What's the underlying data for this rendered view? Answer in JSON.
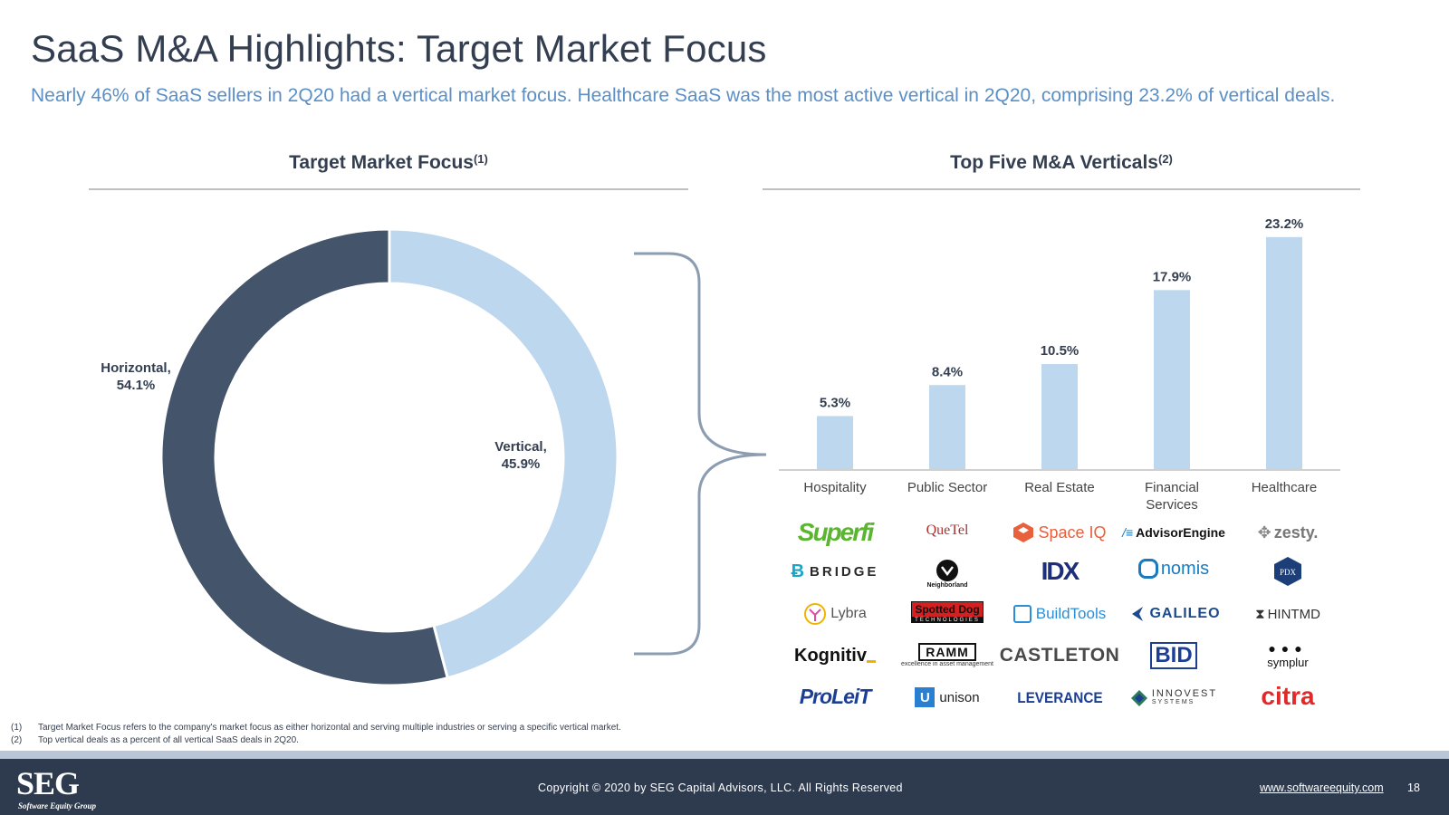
{
  "page": {
    "title": "SaaS M&A Highlights: Target Market Focus",
    "subtitle": "Nearly 46% of SaaS sellers in 2Q20 had a vertical market focus. Healthcare SaaS was the most active vertical in 2Q20, comprising 23.2% of vertical deals."
  },
  "chart_data": [
    {
      "type": "pie",
      "variant": "donut",
      "title": "Target Market Focus",
      "title_note": "(1)",
      "slices": [
        {
          "label": "Vertical,",
          "value": 45.9,
          "value_label": "45.9%",
          "color": "#bdd7ee"
        },
        {
          "label": "Horizontal,",
          "value": 54.1,
          "value_label": "54.1%",
          "color": "#44546a"
        }
      ]
    },
    {
      "type": "bar",
      "title": "Top Five M&A Verticals",
      "title_note": "(2)",
      "categories": [
        "Hospitality",
        "Public Sector",
        "Real Estate",
        "Financial Services",
        "Healthcare"
      ],
      "values": [
        5.3,
        8.4,
        10.5,
        17.9,
        23.2
      ],
      "value_labels": [
        "5.3%",
        "8.4%",
        "10.5%",
        "17.9%",
        "23.2%"
      ],
      "ylim": [
        0,
        24
      ],
      "bar_color": "#bdd7ee",
      "grid": false
    }
  ],
  "logos": [
    [
      "Superfi",
      "BRIDGE",
      "Lybra",
      "Kognitiv",
      "ProLeiT"
    ],
    [
      "QueTel",
      "Neighborland",
      "Spotted Dog",
      "RAMM",
      "unison"
    ],
    [
      "Space IQ",
      "IDX",
      "BuildTools",
      "CASTLETON",
      "LEVERANCE"
    ],
    [
      "AdvisorEngine",
      "nomis",
      "GALILEO",
      "BID",
      "INNOVEST"
    ],
    [
      "zesty.",
      "PDX",
      "HINTMD",
      "symplur",
      "citra"
    ]
  ],
  "logo_sublines": {
    "ramm": "excellence in asset management",
    "spotted_dog": "TECHNOLOGIES",
    "innovest": "SYSTEMS"
  },
  "footnotes": [
    {
      "num": "(1)",
      "text": "Target Market Focus refers to the company's market focus as either horizontal and serving multiple industries or serving a specific vertical market."
    },
    {
      "num": "(2)",
      "text": "Top vertical deals as a percent of all vertical SaaS deals in 2Q20."
    }
  ],
  "footer": {
    "logo": "SEG",
    "logo_sub": "Software Equity Group",
    "copyright": "Copyright © 2020 by SEG Capital Advisors, LLC. All Rights Reserved",
    "website": "www.softwareequity.com",
    "page_number": "18"
  }
}
